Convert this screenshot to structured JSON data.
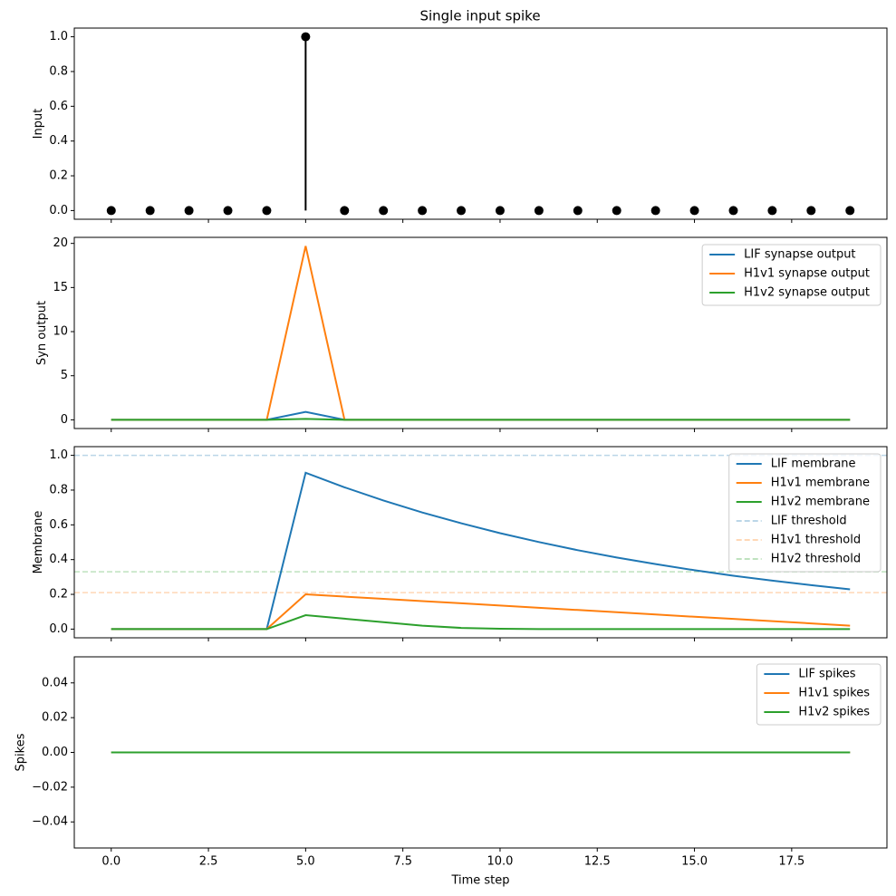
{
  "chart_data": [
    {
      "type": "stem",
      "title": "Single input spike",
      "ylabel": "Input",
      "x": [
        0,
        1,
        2,
        3,
        4,
        5,
        6,
        7,
        8,
        9,
        10,
        11,
        12,
        13,
        14,
        15,
        16,
        17,
        18,
        19
      ],
      "values": [
        0,
        0,
        0,
        0,
        0,
        1,
        0,
        0,
        0,
        0,
        0,
        0,
        0,
        0,
        0,
        0,
        0,
        0,
        0,
        0
      ],
      "color": "#000000",
      "xlim": [
        -0.95,
        19.95
      ],
      "ylim": [
        -0.05,
        1.05
      ],
      "yticks": [
        {
          "value": 0,
          "label": "0.0"
        },
        {
          "value": 0.2,
          "label": "0.2"
        },
        {
          "value": 0.4,
          "label": "0.4"
        },
        {
          "value": 0.6,
          "label": "0.6"
        },
        {
          "value": 0.8,
          "label": "0.8"
        },
        {
          "value": 1,
          "label": "1.0"
        }
      ]
    },
    {
      "type": "line",
      "ylabel": "Syn output",
      "legend": "upper right",
      "x": [
        0,
        1,
        2,
        3,
        4,
        5,
        6,
        7,
        8,
        9,
        10,
        11,
        12,
        13,
        14,
        15,
        16,
        17,
        18,
        19
      ],
      "series": [
        {
          "name": "LIF synapse output",
          "color": "#1f77b4",
          "values": [
            0,
            0,
            0,
            0,
            0,
            0.9,
            0,
            0,
            0,
            0,
            0,
            0,
            0,
            0,
            0,
            0,
            0,
            0,
            0,
            0
          ]
        },
        {
          "name": "H1v1 synapse output",
          "color": "#ff7f0e",
          "values": [
            0,
            0,
            0,
            0,
            0,
            19.7,
            0,
            0,
            0,
            0,
            0,
            0,
            0,
            0,
            0,
            0,
            0,
            0,
            0,
            0
          ]
        },
        {
          "name": "H1v2 synapse output",
          "color": "#2ca02c",
          "values": [
            0,
            0,
            0,
            0,
            0,
            0.1,
            0,
            0,
            0,
            0,
            0,
            0,
            0,
            0,
            0,
            0,
            0,
            0,
            0,
            0
          ]
        }
      ],
      "xlim": [
        -0.95,
        19.95
      ],
      "ylim": [
        -0.985,
        20.685
      ],
      "yticks": [
        0,
        5,
        10,
        15,
        20
      ]
    },
    {
      "type": "line",
      "ylabel": "Membrane",
      "legend": "upper right",
      "x": [
        0,
        1,
        2,
        3,
        4,
        5,
        6,
        7,
        8,
        9,
        10,
        11,
        12,
        13,
        14,
        15,
        16,
        17,
        18,
        19
      ],
      "series": [
        {
          "name": "LIF membrane",
          "color": "#1f77b4",
          "values": [
            0,
            0,
            0,
            0,
            0,
            0.9,
            0.816,
            0.74,
            0.671,
            0.609,
            0.552,
            0.501,
            0.454,
            0.412,
            0.374,
            0.339,
            0.307,
            0.279,
            0.253,
            0.229
          ]
        },
        {
          "name": "H1v1 membrane",
          "color": "#ff7f0e",
          "values": [
            0,
            0,
            0,
            0,
            0,
            0.2,
            0.187,
            0.174,
            0.161,
            0.149,
            0.136,
            0.123,
            0.11,
            0.097,
            0.084,
            0.071,
            0.059,
            0.046,
            0.033,
            0.02
          ]
        },
        {
          "name": "H1v2 membrane",
          "color": "#2ca02c",
          "values": [
            0,
            0,
            0,
            0,
            0,
            0.08,
            0.06,
            0.04,
            0.02,
            0.007,
            0.002,
            0,
            0,
            0,
            0,
            0,
            0,
            0,
            0,
            0
          ]
        }
      ],
      "hlines": [
        {
          "name": "LIF threshold",
          "color": "#1f77b4",
          "value": 1.0
        },
        {
          "name": "H1v1 threshold",
          "color": "#ff7f0e",
          "value": 0.21
        },
        {
          "name": "H1v2 threshold",
          "color": "#2ca02c",
          "value": 0.33
        }
      ],
      "hline_style": "dashed",
      "hline_alpha": 0.3,
      "xlim": [
        -0.95,
        19.95
      ],
      "ylim": [
        -0.05,
        1.05
      ],
      "yticks": [
        {
          "value": 0,
          "label": "0.0"
        },
        {
          "value": 0.2,
          "label": "0.2"
        },
        {
          "value": 0.4,
          "label": "0.4"
        },
        {
          "value": 0.6,
          "label": "0.6"
        },
        {
          "value": 0.8,
          "label": "0.8"
        },
        {
          "value": 1,
          "label": "1.0"
        }
      ]
    },
    {
      "type": "line",
      "ylabel": "Spikes",
      "xlabel": "Time step",
      "legend": "upper right",
      "x": [
        0,
        1,
        2,
        3,
        4,
        5,
        6,
        7,
        8,
        9,
        10,
        11,
        12,
        13,
        14,
        15,
        16,
        17,
        18,
        19
      ],
      "series": [
        {
          "name": "LIF spikes",
          "color": "#1f77b4",
          "values": [
            0,
            0,
            0,
            0,
            0,
            0,
            0,
            0,
            0,
            0,
            0,
            0,
            0,
            0,
            0,
            0,
            0,
            0,
            0,
            0
          ]
        },
        {
          "name": "H1v1 spikes",
          "color": "#ff7f0e",
          "values": [
            0,
            0,
            0,
            0,
            0,
            0,
            0,
            0,
            0,
            0,
            0,
            0,
            0,
            0,
            0,
            0,
            0,
            0,
            0,
            0
          ]
        },
        {
          "name": "H1v2 spikes",
          "color": "#2ca02c",
          "values": [
            0,
            0,
            0,
            0,
            0,
            0,
            0,
            0,
            0,
            0,
            0,
            0,
            0,
            0,
            0,
            0,
            0,
            0,
            0,
            0
          ]
        }
      ],
      "xlim": [
        -0.95,
        19.95
      ],
      "ylim": [
        -0.055,
        0.055
      ],
      "xticks": [
        {
          "value": 0,
          "label": "0.0"
        },
        {
          "value": 2.5,
          "label": "2.5"
        },
        {
          "value": 5,
          "label": "5.0"
        },
        {
          "value": 7.5,
          "label": "7.5"
        },
        {
          "value": 10,
          "label": "10.0"
        },
        {
          "value": 12.5,
          "label": "12.5"
        },
        {
          "value": 15,
          "label": "15.0"
        },
        {
          "value": 17.5,
          "label": "17.5"
        }
      ],
      "yticks": [
        {
          "value": -0.04,
          "label": "−0.04"
        },
        {
          "value": -0.02,
          "label": "−0.02"
        },
        {
          "value": 0,
          "label": "0.00"
        },
        {
          "value": 0.02,
          "label": "0.02"
        },
        {
          "value": 0.04,
          "label": "0.04"
        }
      ]
    }
  ]
}
